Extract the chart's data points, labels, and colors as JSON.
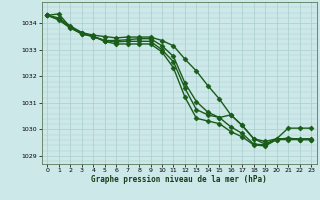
{
  "xlabel": "Graphe pression niveau de la mer (hPa)",
  "bg_color": "#cce8e8",
  "grid_color": "#aacece",
  "line_color": "#1a5c1a",
  "marker_color": "#1a5c1a",
  "ylim": [
    1028.7,
    1034.8
  ],
  "yticks": [
    1029,
    1030,
    1031,
    1032,
    1033,
    1034
  ],
  "xlim": [
    -0.5,
    23.5
  ],
  "xticks": [
    0,
    1,
    2,
    3,
    4,
    5,
    6,
    7,
    8,
    9,
    10,
    11,
    12,
    13,
    14,
    15,
    16,
    17,
    18,
    19,
    20,
    21,
    22,
    23
  ],
  "series": [
    {
      "x": [
        0,
        1,
        2,
        3,
        4,
        5,
        6,
        7,
        8,
        9,
        10,
        11,
        12,
        13,
        14,
        15,
        16,
        17,
        18,
        19,
        20,
        21,
        22,
        23
      ],
      "y": [
        1034.3,
        1034.35,
        1033.85,
        1033.65,
        1033.55,
        1033.5,
        1033.45,
        1033.48,
        1033.48,
        1033.48,
        1033.35,
        1033.15,
        1032.65,
        1032.2,
        1031.65,
        1031.15,
        1030.55,
        1030.15,
        1029.65,
        1029.55,
        1029.65,
        1030.05,
        1030.05,
        1030.05
      ],
      "marker": "D",
      "markersize": 2.5,
      "linewidth": 1.0
    },
    {
      "x": [
        0,
        1,
        2,
        3,
        4,
        5,
        6,
        7,
        8,
        9,
        10,
        11,
        12,
        13,
        14,
        15,
        16,
        17,
        18,
        19,
        20,
        21,
        22,
        23
      ],
      "y": [
        1034.3,
        1034.2,
        1033.9,
        1033.65,
        1033.5,
        1033.35,
        1033.35,
        1033.38,
        1033.42,
        1033.42,
        1033.15,
        1032.75,
        1031.75,
        1031.05,
        1030.65,
        1030.45,
        1030.55,
        1030.15,
        1029.65,
        1029.45,
        1029.65,
        1029.65,
        1029.65,
        1029.65
      ],
      "marker": "D",
      "markersize": 2.5,
      "linewidth": 1.0
    },
    {
      "x": [
        0,
        1,
        2,
        3,
        4,
        5,
        6,
        7,
        8,
        9,
        10,
        11,
        12,
        13,
        14,
        15,
        16,
        17,
        18,
        19,
        20,
        21,
        22,
        23
      ],
      "y": [
        1034.3,
        1034.15,
        1033.85,
        1033.6,
        1033.5,
        1033.35,
        1033.3,
        1033.32,
        1033.32,
        1033.32,
        1033.0,
        1032.55,
        1031.55,
        1030.75,
        1030.55,
        1030.45,
        1030.1,
        1029.85,
        1029.45,
        1029.42,
        1029.62,
        1029.68,
        1029.62,
        1029.62
      ],
      "marker": "D",
      "markersize": 2.5,
      "linewidth": 1.0
    },
    {
      "x": [
        0,
        1,
        2,
        3,
        4,
        5,
        6,
        7,
        8,
        9,
        10,
        11,
        12,
        13,
        14,
        15,
        16,
        17,
        18,
        19,
        20,
        21,
        22,
        23
      ],
      "y": [
        1034.3,
        1034.12,
        1033.82,
        1033.6,
        1033.5,
        1033.32,
        1033.22,
        1033.22,
        1033.22,
        1033.22,
        1032.92,
        1032.32,
        1031.22,
        1030.42,
        1030.32,
        1030.22,
        1029.92,
        1029.72,
        1029.42,
        1029.38,
        1029.62,
        1029.62,
        1029.62,
        1029.62
      ],
      "marker": "D",
      "markersize": 2.5,
      "linewidth": 1.0
    }
  ]
}
